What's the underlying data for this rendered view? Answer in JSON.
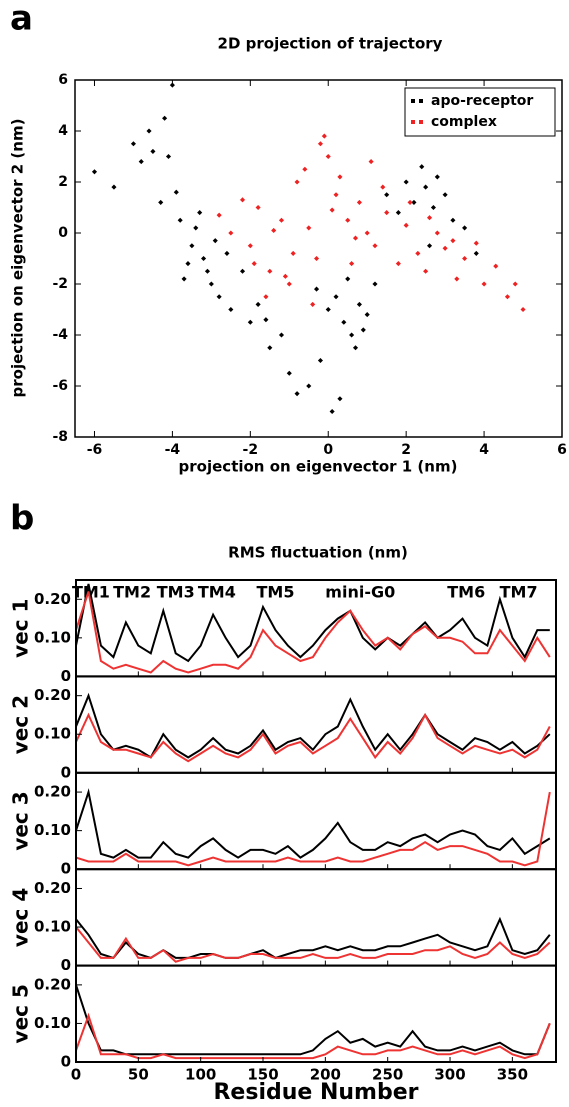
{
  "chart_data": [
    {
      "type": "scatter",
      "panel_label": "a",
      "title": "2D projection of trajectory",
      "xlabel": "projection on eigenvector 1 (nm)",
      "ylabel": "projection on eigenvector 2 (nm)",
      "xlim": [
        -6.5,
        6
      ],
      "ylim": [
        -8,
        6
      ],
      "xticks": [
        -6,
        -4,
        -2,
        0,
        2,
        4,
        6
      ],
      "yticks": [
        -8,
        -6,
        -4,
        -2,
        0,
        2,
        4,
        6
      ],
      "legend": "upper right",
      "series": [
        {
          "name": "apo-receptor",
          "color": "#000000",
          "x": [
            -6,
            -5.5,
            -5,
            -4.8,
            -4.5,
            -4.2,
            -4,
            -4.3,
            -3.8,
            -3.5,
            -3.2,
            -3,
            -3.4,
            -3.1,
            -2.8,
            -2.5,
            -3.6,
            -3.3,
            -2.9,
            -2.2,
            -2,
            -1.5,
            -1,
            -0.5,
            0,
            0.2,
            0.4,
            0.6,
            0.8,
            1,
            0.3,
            -0.2,
            0.5,
            1.2,
            1.5,
            2,
            2.2,
            2.5,
            2.7,
            3,
            3.2,
            2.4,
            2.8,
            3.5,
            -1.8,
            -1.2,
            -0.8,
            0.1,
            0.7,
            -3.7,
            -2.6,
            -4.6,
            -4.1,
            -3.9,
            1.8,
            2.6,
            3.8,
            -0.3,
            0.9,
            -1.6
          ],
          "y": [
            2.4,
            1.8,
            3.5,
            2.8,
            3.2,
            4.5,
            5.8,
            1.2,
            0.5,
            -0.5,
            -1,
            -2,
            0.2,
            -1.5,
            -2.5,
            -3,
            -1.2,
            0.8,
            -0.3,
            -1.5,
            -3.5,
            -4.5,
            -5.5,
            -6,
            -3,
            -2.5,
            -3.5,
            -4,
            -2.8,
            -3.2,
            -6.5,
            -5,
            -1.8,
            -2,
            1.5,
            2,
            1.2,
            1.8,
            1,
            1.5,
            0.5,
            2.6,
            2.2,
            0.2,
            -2.8,
            -4,
            -6.3,
            -7,
            -4.5,
            -1.8,
            -0.8,
            4,
            3,
            1.6,
            0.8,
            -0.5,
            -0.8,
            -2.2,
            -3.8,
            -3.4
          ]
        },
        {
          "name": "complex",
          "color": "#ee2222",
          "x": [
            -2.5,
            -2,
            -1.8,
            -1.5,
            -1.2,
            -1,
            -0.8,
            -0.5,
            -0.3,
            0,
            0.2,
            0.5,
            0.8,
            1,
            1.2,
            1.5,
            1.8,
            2,
            2.3,
            2.5,
            2.8,
            3,
            3.3,
            3.5,
            3.8,
            4,
            4.3,
            4.6,
            5,
            -1.6,
            -1.1,
            -0.6,
            -0.2,
            0.3,
            0.6,
            -2.2,
            -1.9,
            -0.9,
            0.1,
            1.4,
            2.1,
            3.2,
            -1.4,
            -0.4,
            0.7,
            -2.8,
            4.8,
            -0.1,
            1.1,
            2.6
          ],
          "y": [
            0,
            -0.5,
            1,
            -1.5,
            0.5,
            -2,
            2,
            0.2,
            -1,
            3,
            1.5,
            0.5,
            1.2,
            0,
            -0.5,
            0.8,
            -1.2,
            0.3,
            -0.8,
            -1.5,
            0,
            -0.6,
            -1.8,
            -1,
            -0.4,
            -2,
            -1.3,
            -2.5,
            -3,
            -2.5,
            -1.7,
            2.5,
            3.5,
            2.2,
            -1.2,
            1.3,
            -1.2,
            -0.8,
            0.9,
            1.8,
            1.2,
            -0.3,
            0.1,
            -2.8,
            -0.2,
            0.7,
            -2,
            3.8,
            2.8,
            0.6
          ]
        }
      ]
    },
    {
      "type": "line",
      "panel_label": "b",
      "title": "RMS fluctuation (nm)",
      "xlabel": "Residue Number",
      "xlim": [
        0,
        385
      ],
      "xticks": [
        0,
        50,
        100,
        150,
        200,
        250,
        300,
        350
      ],
      "region_labels": [
        {
          "text": "TM1",
          "x": 12
        },
        {
          "text": "TM2",
          "x": 45
        },
        {
          "text": "TM3",
          "x": 80
        },
        {
          "text": "TM4",
          "x": 113
        },
        {
          "text": "TM5",
          "x": 160
        },
        {
          "text": "mini-G0",
          "x": 228
        },
        {
          "text": "TM6",
          "x": 313
        },
        {
          "text": "TM7",
          "x": 355
        }
      ],
      "x": [
        0,
        10,
        20,
        30,
        40,
        50,
        60,
        70,
        80,
        90,
        100,
        110,
        120,
        130,
        140,
        150,
        160,
        170,
        180,
        190,
        200,
        210,
        220,
        230,
        240,
        250,
        260,
        270,
        280,
        290,
        300,
        310,
        320,
        330,
        340,
        350,
        360,
        370,
        380
      ],
      "panels": [
        {
          "ylabel": "vec 1",
          "ylim": [
            0,
            0.25
          ],
          "yticks": [
            0,
            {
              "value": 0.1,
              "label": "0.10"
            },
            {
              "value": 0.2,
              "label": "0.20"
            }
          ],
          "series": [
            {
              "color": "#000000",
              "values": [
                0.08,
                0.24,
                0.08,
                0.05,
                0.14,
                0.08,
                0.06,
                0.17,
                0.06,
                0.04,
                0.08,
                0.16,
                0.1,
                0.05,
                0.08,
                0.18,
                0.12,
                0.08,
                0.05,
                0.08,
                0.12,
                0.15,
                0.17,
                0.1,
                0.07,
                0.1,
                0.08,
                0.11,
                0.14,
                0.1,
                0.12,
                0.15,
                0.1,
                0.08,
                0.2,
                0.1,
                0.05,
                0.12,
                0.12
              ]
            },
            {
              "color": "#ee3333",
              "values": [
                0.12,
                0.22,
                0.04,
                0.02,
                0.03,
                0.02,
                0.01,
                0.04,
                0.02,
                0.01,
                0.02,
                0.03,
                0.03,
                0.02,
                0.05,
                0.12,
                0.08,
                0.06,
                0.04,
                0.05,
                0.1,
                0.14,
                0.17,
                0.12,
                0.08,
                0.1,
                0.07,
                0.11,
                0.13,
                0.1,
                0.1,
                0.09,
                0.06,
                0.06,
                0.12,
                0.08,
                0.04,
                0.1,
                0.05
              ]
            }
          ]
        },
        {
          "ylabel": "vec 2",
          "ylim": [
            0,
            0.25
          ],
          "yticks": [
            0,
            {
              "value": 0.1,
              "label": "0.10"
            },
            {
              "value": 0.2,
              "label": "0.20"
            }
          ],
          "series": [
            {
              "color": "#000000",
              "values": [
                0.12,
                0.2,
                0.1,
                0.06,
                0.07,
                0.06,
                0.04,
                0.1,
                0.06,
                0.04,
                0.06,
                0.09,
                0.06,
                0.05,
                0.07,
                0.11,
                0.06,
                0.08,
                0.09,
                0.06,
                0.1,
                0.12,
                0.19,
                0.12,
                0.06,
                0.1,
                0.06,
                0.1,
                0.15,
                0.1,
                0.08,
                0.06,
                0.09,
                0.08,
                0.06,
                0.08,
                0.05,
                0.07,
                0.1
              ]
            },
            {
              "color": "#ee3333",
              "values": [
                0.08,
                0.15,
                0.08,
                0.06,
                0.06,
                0.05,
                0.04,
                0.08,
                0.05,
                0.03,
                0.05,
                0.07,
                0.05,
                0.04,
                0.06,
                0.1,
                0.05,
                0.07,
                0.08,
                0.05,
                0.07,
                0.09,
                0.14,
                0.09,
                0.04,
                0.08,
                0.05,
                0.09,
                0.15,
                0.09,
                0.07,
                0.05,
                0.07,
                0.06,
                0.05,
                0.06,
                0.04,
                0.06,
                0.12
              ]
            }
          ]
        },
        {
          "ylabel": "vec 3",
          "ylim": [
            0,
            0.25
          ],
          "yticks": [
            0,
            {
              "value": 0.1,
              "label": "0.10"
            },
            {
              "value": 0.2,
              "label": "0.20"
            }
          ],
          "series": [
            {
              "color": "#000000",
              "values": [
                0.1,
                0.2,
                0.04,
                0.03,
                0.05,
                0.03,
                0.03,
                0.07,
                0.04,
                0.03,
                0.06,
                0.08,
                0.05,
                0.03,
                0.05,
                0.05,
                0.04,
                0.06,
                0.03,
                0.05,
                0.08,
                0.12,
                0.07,
                0.05,
                0.05,
                0.07,
                0.06,
                0.08,
                0.09,
                0.07,
                0.09,
                0.1,
                0.09,
                0.06,
                0.05,
                0.08,
                0.04,
                0.06,
                0.08
              ]
            },
            {
              "color": "#ee3333",
              "values": [
                0.03,
                0.02,
                0.02,
                0.02,
                0.04,
                0.02,
                0.02,
                0.02,
                0.02,
                0.01,
                0.02,
                0.03,
                0.02,
                0.02,
                0.02,
                0.02,
                0.02,
                0.03,
                0.02,
                0.02,
                0.02,
                0.03,
                0.02,
                0.02,
                0.03,
                0.04,
                0.05,
                0.05,
                0.07,
                0.05,
                0.06,
                0.06,
                0.05,
                0.04,
                0.02,
                0.02,
                0.01,
                0.02,
                0.2
              ]
            }
          ]
        },
        {
          "ylabel": "vec 4",
          "ylim": [
            0,
            0.25
          ],
          "yticks": [
            0,
            {
              "value": 0.1,
              "label": "0.10"
            },
            {
              "value": 0.2,
              "label": "0.20"
            }
          ],
          "series": [
            {
              "color": "#000000",
              "values": [
                0.12,
                0.08,
                0.03,
                0.02,
                0.06,
                0.03,
                0.02,
                0.04,
                0.02,
                0.02,
                0.03,
                0.03,
                0.02,
                0.02,
                0.03,
                0.04,
                0.02,
                0.03,
                0.04,
                0.04,
                0.05,
                0.04,
                0.05,
                0.04,
                0.04,
                0.05,
                0.05,
                0.06,
                0.07,
                0.08,
                0.06,
                0.05,
                0.04,
                0.05,
                0.12,
                0.04,
                0.03,
                0.04,
                0.08
              ]
            },
            {
              "color": "#ee3333",
              "values": [
                0.1,
                0.06,
                0.02,
                0.02,
                0.07,
                0.02,
                0.02,
                0.04,
                0.01,
                0.02,
                0.02,
                0.03,
                0.02,
                0.02,
                0.03,
                0.03,
                0.02,
                0.02,
                0.02,
                0.03,
                0.02,
                0.02,
                0.03,
                0.02,
                0.02,
                0.03,
                0.03,
                0.03,
                0.04,
                0.04,
                0.05,
                0.03,
                0.02,
                0.03,
                0.06,
                0.03,
                0.02,
                0.03,
                0.06
              ]
            }
          ]
        },
        {
          "ylabel": "vec 5",
          "ylim": [
            0,
            0.25
          ],
          "yticks": [
            0,
            {
              "value": 0.1,
              "label": "0.10"
            },
            {
              "value": 0.2,
              "label": "0.20"
            }
          ],
          "series": [
            {
              "color": "#000000",
              "values": [
                0.2,
                0.1,
                0.03,
                0.03,
                0.02,
                0.02,
                0.02,
                0.02,
                0.02,
                0.02,
                0.02,
                0.02,
                0.02,
                0.02,
                0.02,
                0.02,
                0.02,
                0.02,
                0.02,
                0.03,
                0.06,
                0.08,
                0.05,
                0.06,
                0.04,
                0.05,
                0.04,
                0.08,
                0.04,
                0.03,
                0.03,
                0.04,
                0.03,
                0.04,
                0.05,
                0.03,
                0.02,
                0.02,
                0.1
              ]
            },
            {
              "color": "#ee3333",
              "values": [
                0.03,
                0.12,
                0.02,
                0.02,
                0.02,
                0.01,
                0.01,
                0.02,
                0.01,
                0.01,
                0.01,
                0.01,
                0.01,
                0.01,
                0.01,
                0.01,
                0.01,
                0.01,
                0.01,
                0.01,
                0.02,
                0.04,
                0.03,
                0.02,
                0.02,
                0.03,
                0.03,
                0.04,
                0.03,
                0.02,
                0.02,
                0.03,
                0.02,
                0.03,
                0.04,
                0.02,
                0.01,
                0.02,
                0.1
              ]
            }
          ]
        }
      ]
    }
  ]
}
